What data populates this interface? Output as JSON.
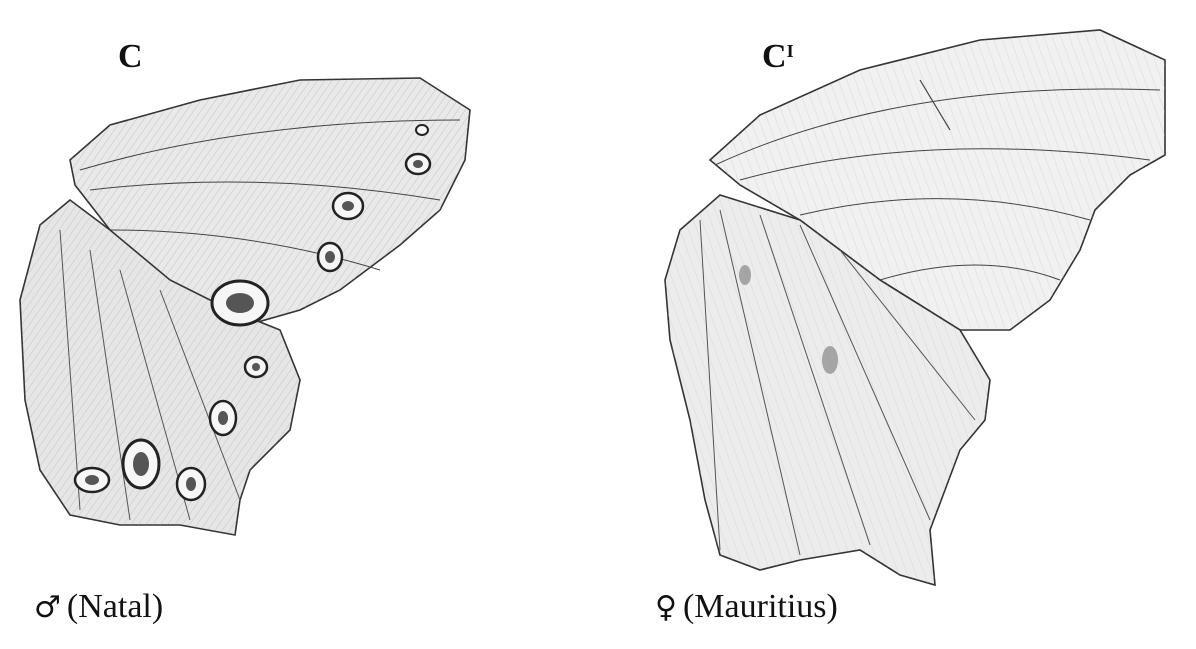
{
  "panels": [
    {
      "label": "C",
      "label_sup": "",
      "caption_symbol": "♂",
      "caption_text": "(Natal)"
    },
    {
      "label": "C",
      "label_sup": "I",
      "caption_symbol": "♀",
      "caption_text": "(Mauritius)"
    }
  ]
}
